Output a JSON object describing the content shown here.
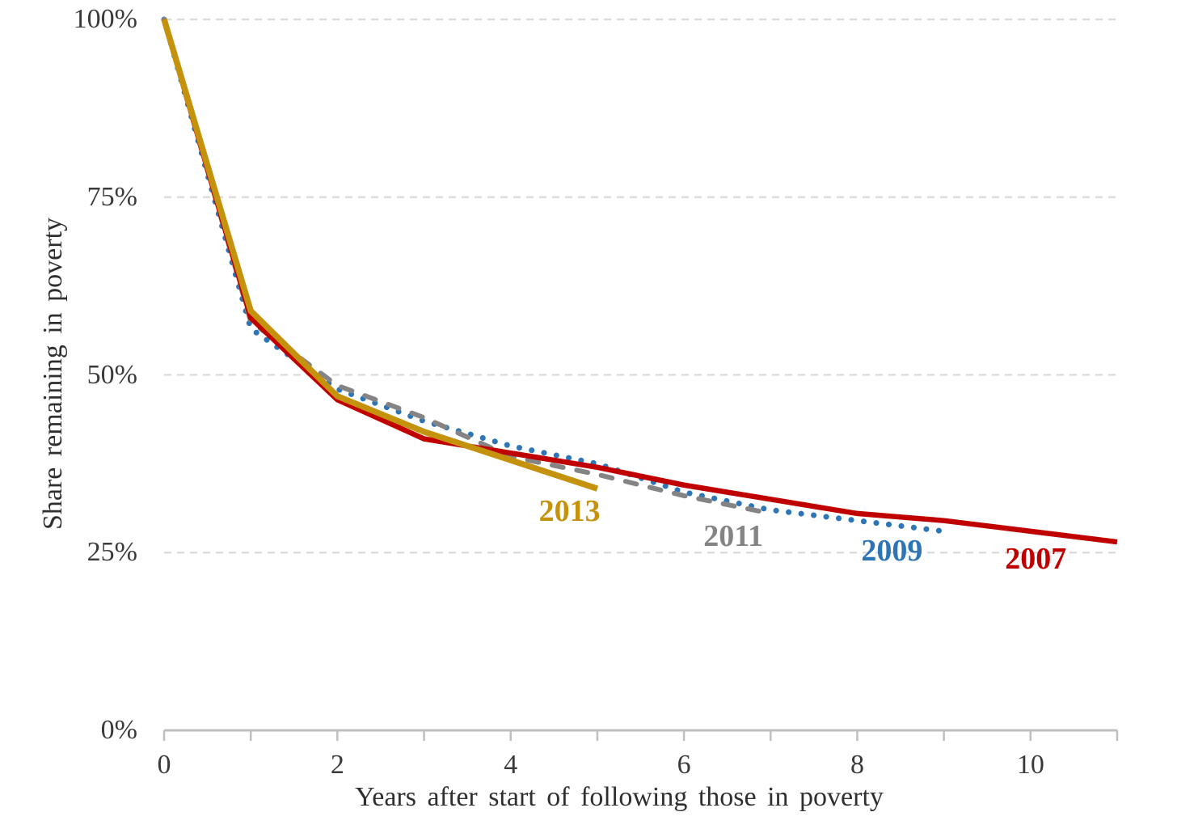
{
  "chart_data": {
    "type": "line",
    "title": "",
    "xlabel": "Years after start of following those in poverty",
    "ylabel": "Share remaining in poverty",
    "xlim": [
      0,
      11
    ],
    "ylim": [
      0,
      100
    ],
    "grid": {
      "show": true,
      "gridline_color": "#d9d9d9",
      "axis_color": "#bfbfbf",
      "text_color": "#3a3a3a"
    },
    "x_ticks": [
      0,
      1,
      2,
      3,
      4,
      5,
      6,
      7,
      8,
      9,
      10,
      11
    ],
    "x_labeled_ticks": [
      {
        "value": 0,
        "label": "0"
      },
      {
        "value": 2,
        "label": "2"
      },
      {
        "value": 4,
        "label": "4"
      },
      {
        "value": 6,
        "label": "6"
      },
      {
        "value": 8,
        "label": "8"
      },
      {
        "value": 10,
        "label": "10"
      }
    ],
    "y_ticks": [
      {
        "value": 100,
        "label": "100%"
      },
      {
        "value": 75,
        "label": "75%"
      },
      {
        "value": 50,
        "label": "50%"
      },
      {
        "value": 25,
        "label": "25%"
      },
      {
        "value": 0,
        "label": "0%"
      }
    ],
    "legend_position": "inline labels near each line end",
    "series": [
      {
        "name": "2009",
        "color": "#2e75b6",
        "style": "dotted",
        "width": 7,
        "x": [
          0,
          1,
          2,
          3,
          4,
          5,
          6,
          7,
          8,
          9
        ],
        "values": [
          100,
          56.5,
          48,
          43.5,
          40,
          37.5,
          33.5,
          31,
          29.5,
          28
        ],
        "label": {
          "text": "2009",
          "x": 8.4,
          "y": 25.2
        }
      },
      {
        "name": "2011",
        "color": "#848484",
        "style": "dashed",
        "width": 6,
        "x": [
          0,
          1,
          2,
          3,
          4,
          5,
          6,
          7
        ],
        "values": [
          100,
          57.5,
          48.5,
          44,
          38.5,
          36,
          33,
          30.5
        ],
        "label": {
          "text": "2011",
          "x": 6.57,
          "y": 27.3
        }
      },
      {
        "name": "2007",
        "color": "#c00000",
        "style": "solid",
        "width": 6.5,
        "x": [
          0,
          1,
          2,
          3,
          4,
          5,
          6,
          7,
          8,
          9,
          10,
          11
        ],
        "values": [
          100,
          58,
          46.5,
          41,
          39,
          37,
          34.5,
          32.5,
          30.5,
          29.5,
          28,
          26.5
        ],
        "label": {
          "text": "2007",
          "x": 10.06,
          "y": 24.1
        }
      },
      {
        "name": "2013",
        "color": "#c5920e",
        "style": "solid",
        "width": 7.5,
        "x": [
          0,
          1,
          2,
          3,
          4,
          5
        ],
        "values": [
          100,
          59,
          47,
          42,
          38,
          34
        ],
        "label": {
          "text": "2013",
          "x": 4.68,
          "y": 30.8
        }
      }
    ]
  }
}
